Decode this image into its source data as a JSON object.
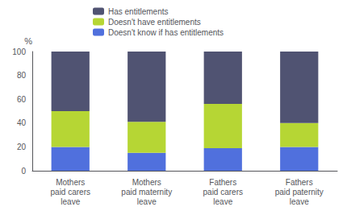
{
  "chart_data": {
    "type": "bar",
    "categories": [
      "Mothers\npaid carers\nleave",
      "Mothers\npaid maternity\nleave",
      "Fathers\npaid carers\nleave",
      "Fathers\npaid paternity\nleave"
    ],
    "series": [
      {
        "name": "Doesn't know if has entitlements",
        "values": [
          20,
          15,
          19,
          20
        ]
      },
      {
        "name": "Doesn't have entitlements",
        "values": [
          30,
          26,
          37,
          20
        ]
      },
      {
        "name": "Has entitlements",
        "values": [
          50,
          59,
          44,
          60
        ]
      }
    ],
    "ylabel": "%",
    "ylim": [
      0,
      100
    ],
    "yticks": [
      0,
      20,
      40,
      60,
      80,
      100
    ],
    "stacked": true,
    "grid": false,
    "legend": "top"
  }
}
